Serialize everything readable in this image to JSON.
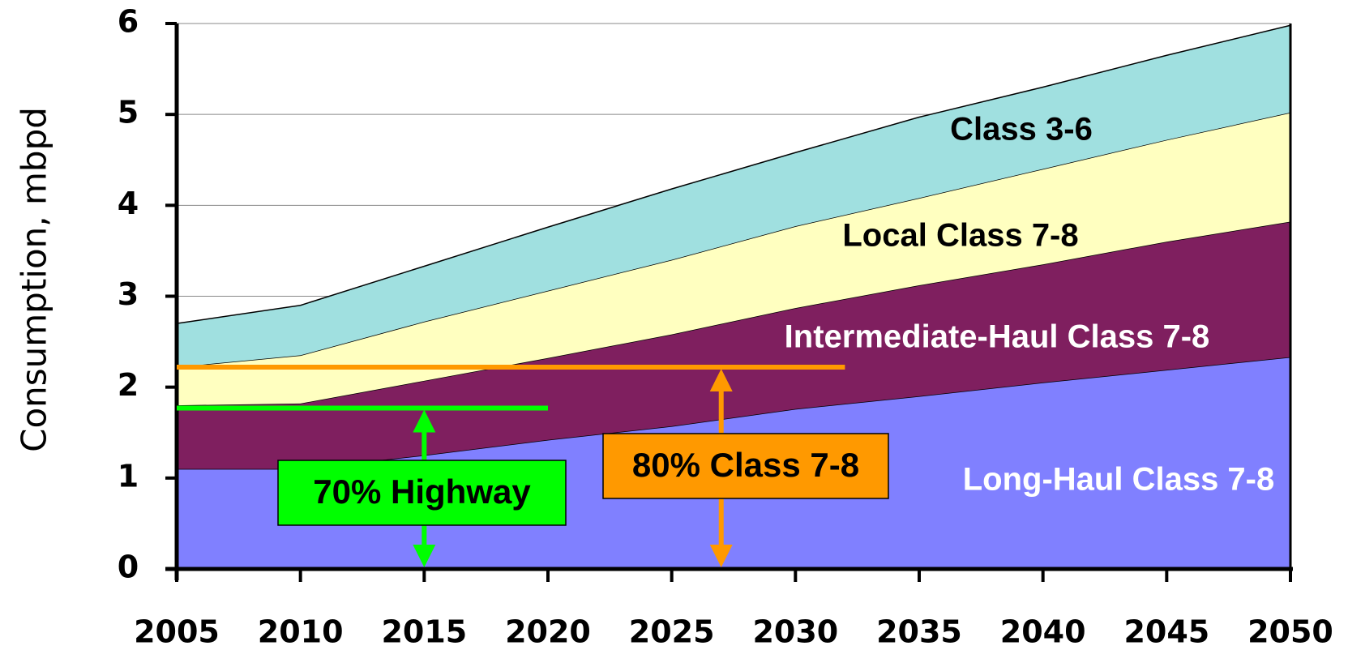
{
  "chart_data": {
    "type": "stacked-area",
    "y_label": "Consumption, mbpd",
    "x": [
      2005,
      2010,
      2015,
      2020,
      2025,
      2030,
      2035,
      2040,
      2045,
      2050
    ],
    "xlim": [
      2005,
      2050
    ],
    "xticks": [
      2005,
      2010,
      2015,
      2020,
      2025,
      2030,
      2035,
      2040,
      2045,
      2050
    ],
    "ylim": [
      0,
      6
    ],
    "yticks": [
      0,
      1,
      2,
      3,
      4,
      5,
      6
    ],
    "grid": true,
    "series": [
      {
        "name": "Long-Haul Class 7-8",
        "color": "#8080ff",
        "values": [
          1.1,
          1.1,
          1.25,
          1.42,
          1.57,
          1.76,
          1.9,
          2.05,
          2.19,
          2.33
        ]
      },
      {
        "name": "Intermediate-Haul Class 7-8",
        "color": "#7f1f5f",
        "values": [
          0.7,
          0.72,
          0.82,
          0.9,
          1.01,
          1.11,
          1.22,
          1.3,
          1.41,
          1.49
        ]
      },
      {
        "name": "Local Class 7-8",
        "color": "#ffffc0",
        "values": [
          0.42,
          0.53,
          0.65,
          0.74,
          0.82,
          0.9,
          0.96,
          1.05,
          1.12,
          1.2
        ]
      },
      {
        "name": "Class 3-6",
        "color": "#a0e0e0",
        "values": [
          0.48,
          0.55,
          0.61,
          0.7,
          0.78,
          0.81,
          0.89,
          0.9,
          0.93,
          0.96
        ]
      }
    ],
    "annotations": [
      {
        "text": "70% Highway",
        "color": "#00ff00",
        "y": 1.77,
        "x_start": 2005,
        "x_end": 2020,
        "arrow_x": 2015
      },
      {
        "text": "80% Class 7-8",
        "color": "#ff9900",
        "y": 2.22,
        "x_start": 2005,
        "x_end": 2032,
        "arrow_x": 2027
      }
    ]
  }
}
